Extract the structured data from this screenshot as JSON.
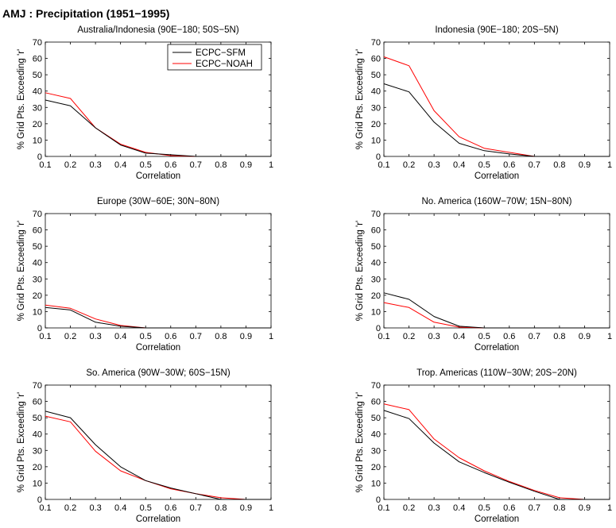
{
  "figure_title": "AMJ : Precipitation (1951−1995)",
  "legend": {
    "entries": [
      "ECPC−SFM",
      "ECPC−NOAH"
    ]
  },
  "colors": {
    "ECPC−SFM": "#000000",
    "ECPC−NOAH": "#ff0000"
  },
  "chart_data": [
    {
      "type": "line",
      "title": "Australia/Indonesia (90E−180; 50S−5N)",
      "xlabel": "Correlation",
      "ylabel": "% Grid Pts. Exceeding 'r'",
      "xlim": [
        0.1,
        1
      ],
      "ylim": [
        0,
        70
      ],
      "xticks": [
        "0.1",
        "0.2",
        "0.3",
        "0.4",
        "0.5",
        "0.6",
        "0.7",
        "0.8",
        "0.9",
        "1"
      ],
      "yticks": [
        "0",
        "10",
        "20",
        "30",
        "40",
        "50",
        "60",
        "70"
      ],
      "x": [
        0.1,
        0.2,
        0.3,
        0.4,
        0.5,
        0.6,
        0.7,
        0.8,
        0.9,
        1.0
      ],
      "series": [
        {
          "name": "ECPC−SFM",
          "values": [
            34.5,
            31,
            17.5,
            7,
            2,
            1,
            0,
            0,
            0,
            0
          ]
        },
        {
          "name": "ECPC−NOAH",
          "values": [
            39,
            35.5,
            17.5,
            7.5,
            2.5,
            0.5,
            0,
            0,
            0,
            0
          ]
        }
      ],
      "legend": "top-right"
    },
    {
      "type": "line",
      "title": "Indonesia (90E−180; 20S−5N)",
      "xlabel": "Correlation",
      "ylabel": "% Grid Pts. Exceeding 'r'",
      "xlim": [
        0.1,
        1
      ],
      "ylim": [
        0,
        70
      ],
      "xticks": [
        "0.1",
        "0.2",
        "0.3",
        "0.4",
        "0.5",
        "0.6",
        "0.7",
        "0.8",
        "0.9",
        "1"
      ],
      "yticks": [
        "0",
        "10",
        "20",
        "30",
        "40",
        "50",
        "60",
        "70"
      ],
      "x": [
        0.1,
        0.2,
        0.3,
        0.4,
        0.5,
        0.6,
        0.7,
        0.8,
        0.9,
        1.0
      ],
      "series": [
        {
          "name": "ECPC−SFM",
          "values": [
            44.5,
            39.5,
            21,
            8,
            3.5,
            1.5,
            0,
            0,
            0,
            0
          ]
        },
        {
          "name": "ECPC−NOAH",
          "values": [
            61,
            55.5,
            28,
            12,
            5,
            2.5,
            0,
            0,
            0,
            0
          ]
        }
      ]
    },
    {
      "type": "line",
      "title": "Europe (30W−60E; 30N−80N)",
      "xlabel": "Correlation",
      "ylabel": "% Grid Pts. Exceeding 'r'",
      "xlim": [
        0.1,
        1
      ],
      "ylim": [
        0,
        70
      ],
      "xticks": [
        "0.1",
        "0.2",
        "0.3",
        "0.4",
        "0.5",
        "0.6",
        "0.7",
        "0.8",
        "0.9",
        "1"
      ],
      "yticks": [
        "0",
        "10",
        "20",
        "30",
        "40",
        "50",
        "60",
        "70"
      ],
      "x": [
        0.1,
        0.2,
        0.3,
        0.4,
        0.5,
        0.6,
        0.7,
        0.8,
        0.9,
        1.0
      ],
      "series": [
        {
          "name": "ECPC−SFM",
          "values": [
            12.5,
            11,
            3.5,
            1,
            0,
            0,
            0,
            0,
            0,
            0
          ]
        },
        {
          "name": "ECPC−NOAH",
          "values": [
            14,
            12,
            5.5,
            1.5,
            0,
            0,
            0,
            0,
            0,
            0
          ]
        }
      ]
    },
    {
      "type": "line",
      "title": "No. America (160W−70W; 15N−80N)",
      "xlabel": "Correlation",
      "ylabel": "% Grid Pts. Exceeding 'r'",
      "xlim": [
        0.1,
        1
      ],
      "ylim": [
        0,
        70
      ],
      "xticks": [
        "0.1",
        "0.2",
        "0.3",
        "0.4",
        "0.5",
        "0.6",
        "0.7",
        "0.8",
        "0.9",
        "1"
      ],
      "yticks": [
        "0",
        "10",
        "20",
        "30",
        "40",
        "50",
        "60",
        "70"
      ],
      "x": [
        0.1,
        0.2,
        0.3,
        0.4,
        0.5,
        0.6,
        0.7,
        0.8,
        0.9,
        1.0
      ],
      "series": [
        {
          "name": "ECPC−SFM",
          "values": [
            21.5,
            17.5,
            7,
            1,
            0,
            0,
            0,
            0,
            0,
            0
          ]
        },
        {
          "name": "ECPC−NOAH",
          "values": [
            15.5,
            12.5,
            3.5,
            0.5,
            0,
            0,
            0,
            0,
            0,
            0
          ]
        }
      ]
    },
    {
      "type": "line",
      "title": "So. America (90W−30W; 60S−15N)",
      "xlabel": "Correlation",
      "ylabel": "% Grid Pts. Exceeding 'r'",
      "xlim": [
        0.1,
        1
      ],
      "ylim": [
        0,
        70
      ],
      "xticks": [
        "0.1",
        "0.2",
        "0.3",
        "0.4",
        "0.5",
        "0.6",
        "0.7",
        "0.8",
        "0.9",
        "1"
      ],
      "yticks": [
        "0",
        "10",
        "20",
        "30",
        "40",
        "50",
        "60",
        "70"
      ],
      "x": [
        0.1,
        0.2,
        0.3,
        0.4,
        0.5,
        0.6,
        0.7,
        0.8,
        0.9,
        1.0
      ],
      "series": [
        {
          "name": "ECPC−SFM",
          "values": [
            54,
            50,
            33.5,
            20,
            11.5,
            7,
            3.5,
            0,
            0,
            0
          ]
        },
        {
          "name": "ECPC−NOAH",
          "values": [
            51,
            47.5,
            29.5,
            17.5,
            11.5,
            6.5,
            3.5,
            1,
            0,
            0
          ]
        }
      ]
    },
    {
      "type": "line",
      "title": "Trop. Americas (110W−30W; 20S−20N)",
      "xlabel": "Correlation",
      "ylabel": "% Grid Pts. Exceeding 'r'",
      "xlim": [
        0.1,
        1
      ],
      "ylim": [
        0,
        70
      ],
      "xticks": [
        "0.1",
        "0.2",
        "0.3",
        "0.4",
        "0.5",
        "0.6",
        "0.7",
        "0.8",
        "0.9",
        "1"
      ],
      "yticks": [
        "0",
        "10",
        "20",
        "30",
        "40",
        "50",
        "60",
        "70"
      ],
      "x": [
        0.1,
        0.2,
        0.3,
        0.4,
        0.5,
        0.6,
        0.7,
        0.8,
        0.9,
        1.0
      ],
      "series": [
        {
          "name": "ECPC−SFM",
          "values": [
            54.5,
            49.5,
            34.5,
            23,
            16.5,
            10.5,
            5,
            0,
            0,
            0
          ]
        },
        {
          "name": "ECPC−NOAH",
          "values": [
            58.5,
            55,
            37,
            25.5,
            17.5,
            11,
            5.5,
            1,
            0,
            0
          ]
        }
      ]
    }
  ]
}
